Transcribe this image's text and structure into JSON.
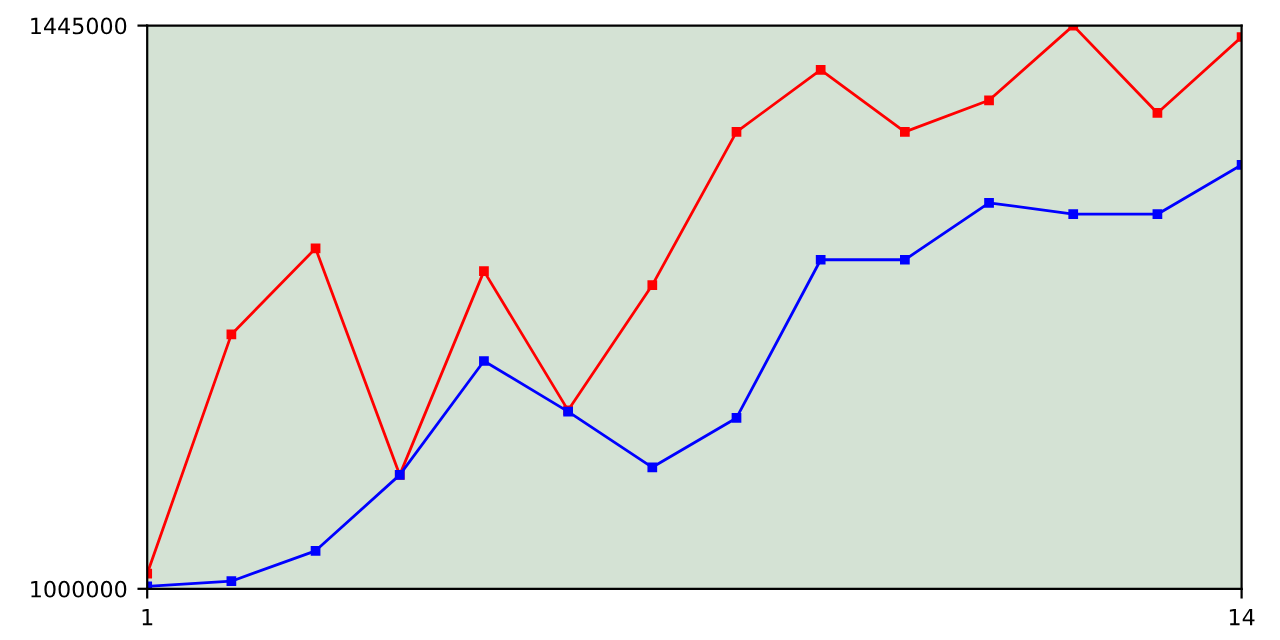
{
  "chart_data": {
    "type": "line",
    "x": [
      1,
      2,
      3,
      4,
      5,
      6,
      7,
      8,
      9,
      10,
      11,
      12,
      13,
      14
    ],
    "series": [
      {
        "color": "#ff0000",
        "values": [
          1012000,
          1201000,
          1269000,
          1090000,
          1251000,
          1141000,
          1240000,
          1361000,
          1410000,
          1361000,
          1386000,
          1445000,
          1376000,
          1436000
        ]
      },
      {
        "color": "#0000ff",
        "values": [
          1002000,
          1006000,
          1030000,
          1090000,
          1180000,
          1140000,
          1096000,
          1135000,
          1260000,
          1260000,
          1305000,
          1296000,
          1296000,
          1335000
        ]
      }
    ],
    "xlim": [
      1,
      14
    ],
    "xticks": [
      1,
      14
    ],
    "ylim": [
      1000000,
      1445000
    ],
    "yticks": [
      1000000,
      1445000
    ],
    "marker": "square",
    "line_style": "solid",
    "grid": false,
    "legend": false
  }
}
